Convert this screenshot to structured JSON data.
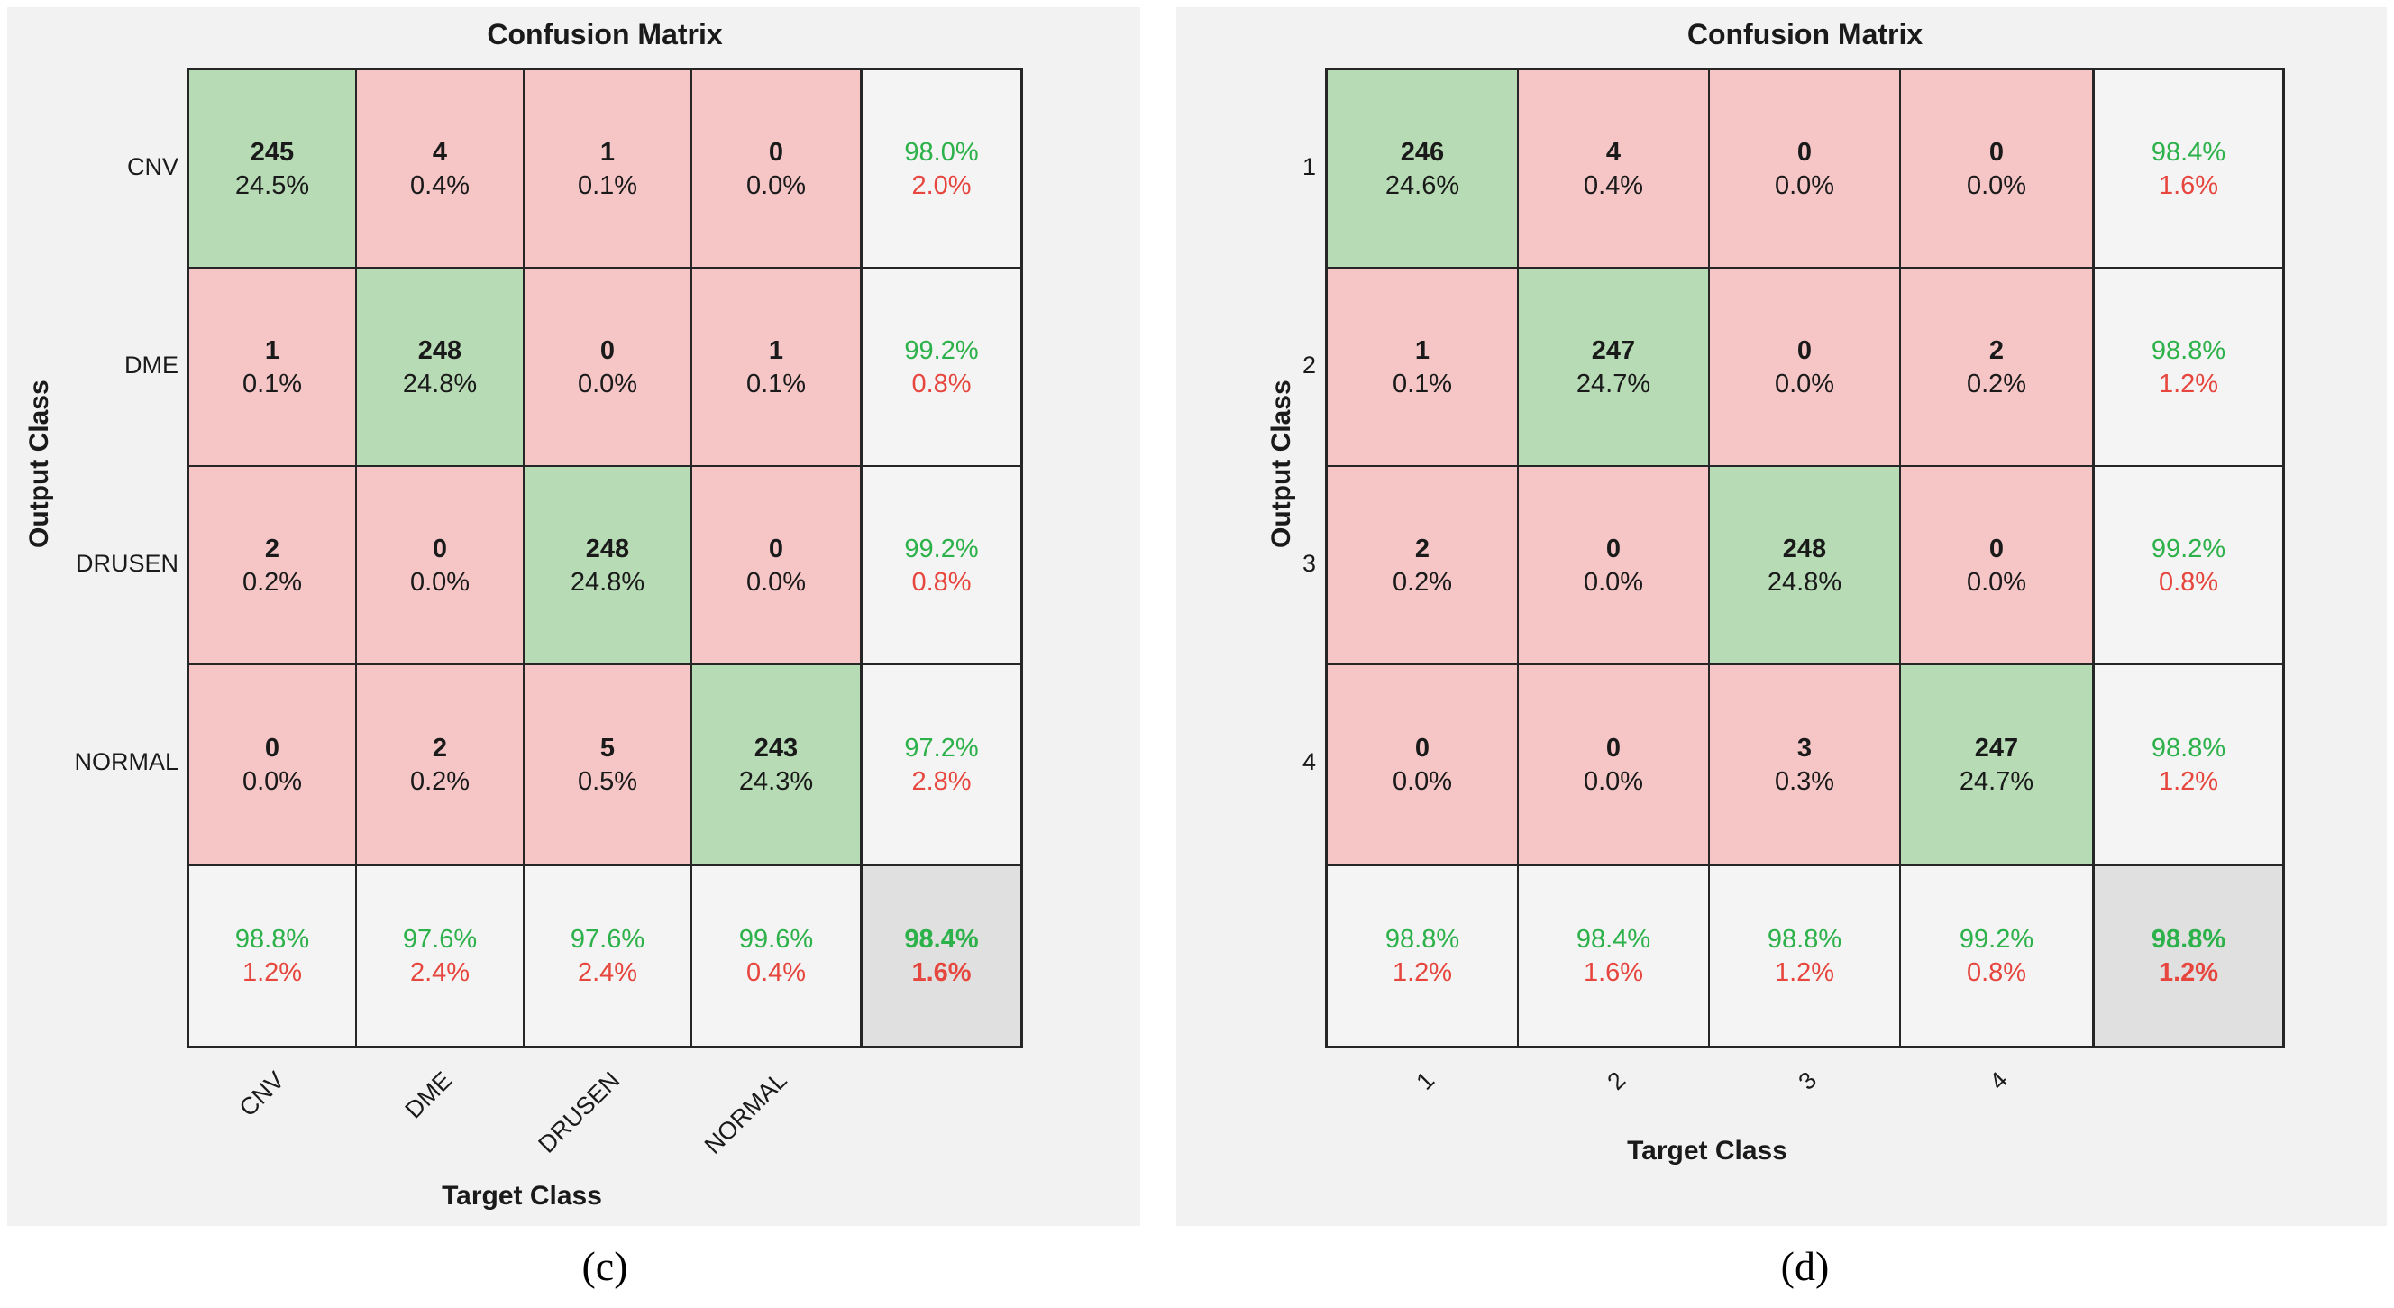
{
  "colors": {
    "bg_panel": "#f2f2f2",
    "cell_diag": "#b7dcb5",
    "cell_off": "#f6c6c7",
    "cell_sum": "#f4f4f4",
    "cell_overall": "#e0e0e0",
    "text_green": "#2db14a",
    "text_red": "#e6463d",
    "line": "#262626",
    "text": "#1a1a1a"
  },
  "chart_data": [
    {
      "type": "heatmap",
      "title": "Confusion Matrix",
      "xlabel": "Target Class",
      "ylabel": "Output Class",
      "caption": "(c)",
      "classes": [
        "CNV",
        "DME",
        "DRUSEN",
        "NORMAL"
      ],
      "counts": [
        [
          245,
          4,
          1,
          0
        ],
        [
          1,
          248,
          0,
          1
        ],
        [
          2,
          0,
          248,
          0
        ],
        [
          0,
          2,
          5,
          243
        ]
      ],
      "pcts": [
        [
          "24.5%",
          "0.4%",
          "0.1%",
          "0.0%"
        ],
        [
          "0.1%",
          "24.8%",
          "0.0%",
          "0.1%"
        ],
        [
          "0.2%",
          "0.0%",
          "24.8%",
          "0.0%"
        ],
        [
          "0.0%",
          "0.2%",
          "0.5%",
          "24.3%"
        ]
      ],
      "row_summary": [
        {
          "pos": "98.0%",
          "neg": "2.0%"
        },
        {
          "pos": "99.2%",
          "neg": "0.8%"
        },
        {
          "pos": "99.2%",
          "neg": "0.8%"
        },
        {
          "pos": "97.2%",
          "neg": "2.8%"
        }
      ],
      "col_summary": [
        {
          "pos": "98.8%",
          "neg": "1.2%"
        },
        {
          "pos": "97.6%",
          "neg": "2.4%"
        },
        {
          "pos": "97.6%",
          "neg": "2.4%"
        },
        {
          "pos": "99.6%",
          "neg": "0.4%"
        }
      ],
      "overall": {
        "pos": "98.4%",
        "neg": "1.6%"
      }
    },
    {
      "type": "heatmap",
      "title": "Confusion Matrix",
      "xlabel": "Target Class",
      "ylabel": "Output Class",
      "caption": "(d)",
      "classes": [
        "1",
        "2",
        "3",
        "4"
      ],
      "counts": [
        [
          246,
          4,
          0,
          0
        ],
        [
          1,
          247,
          0,
          2
        ],
        [
          2,
          0,
          248,
          0
        ],
        [
          0,
          0,
          3,
          247
        ]
      ],
      "pcts": [
        [
          "24.6%",
          "0.4%",
          "0.0%",
          "0.0%"
        ],
        [
          "0.1%",
          "24.7%",
          "0.0%",
          "0.2%"
        ],
        [
          "0.2%",
          "0.0%",
          "24.8%",
          "0.0%"
        ],
        [
          "0.0%",
          "0.0%",
          "0.3%",
          "24.7%"
        ]
      ],
      "row_summary": [
        {
          "pos": "98.4%",
          "neg": "1.6%"
        },
        {
          "pos": "98.8%",
          "neg": "1.2%"
        },
        {
          "pos": "99.2%",
          "neg": "0.8%"
        },
        {
          "pos": "98.8%",
          "neg": "1.2%"
        }
      ],
      "col_summary": [
        {
          "pos": "98.8%",
          "neg": "1.2%"
        },
        {
          "pos": "98.4%",
          "neg": "1.6%"
        },
        {
          "pos": "98.8%",
          "neg": "1.2%"
        },
        {
          "pos": "99.2%",
          "neg": "0.8%"
        }
      ],
      "overall": {
        "pos": "98.8%",
        "neg": "1.2%"
      }
    }
  ]
}
